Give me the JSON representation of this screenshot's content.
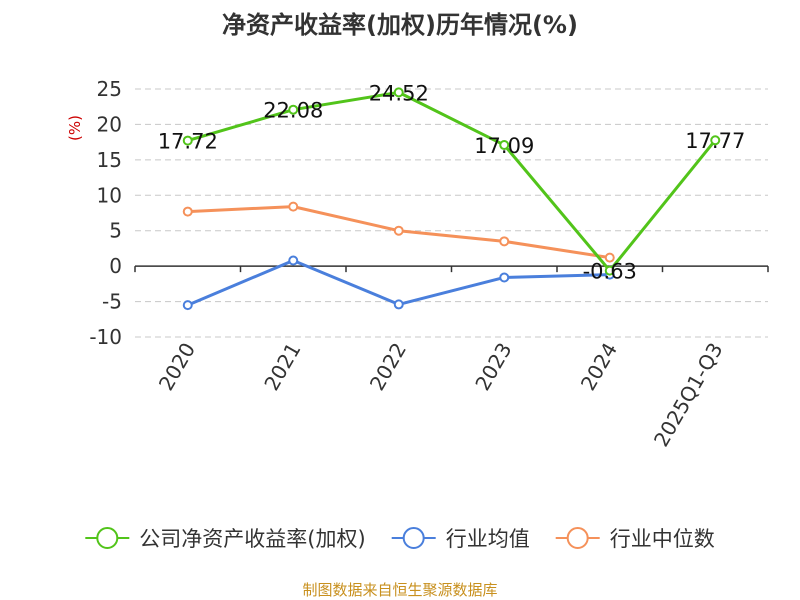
{
  "chart_data": {
    "type": "line",
    "title": "净资产收益率(加权)历年情况(%)",
    "ylabel": "(%)",
    "categories": [
      "2020",
      "2021",
      "2022",
      "2023",
      "2024",
      "2025Q1-Q3"
    ],
    "yticks": [
      "25",
      "20",
      "15",
      "10",
      "5",
      "0",
      "-5",
      "-10"
    ],
    "ylim": [
      -10,
      25
    ],
    "grid": true,
    "legend_position": "bottom",
    "series": [
      {
        "name": "公司净资产收益率(加权)",
        "color": "#52c41a",
        "values": [
          17.72,
          22.08,
          24.52,
          17.09,
          -0.63,
          17.77
        ],
        "labels": [
          "17.72",
          "22.08",
          "24.52",
          "17.09",
          "-0.63",
          "17.77"
        ]
      },
      {
        "name": "行业均值",
        "color": "#4a7fdc",
        "values": [
          -5.5,
          0.8,
          -5.4,
          -1.6,
          -1.2,
          null
        ]
      },
      {
        "name": "行业中位数",
        "color": "#f5915a",
        "values": [
          7.7,
          8.4,
          5.0,
          3.5,
          1.2,
          null
        ]
      }
    ]
  },
  "source": "制图数据来自恒生聚源数据库"
}
